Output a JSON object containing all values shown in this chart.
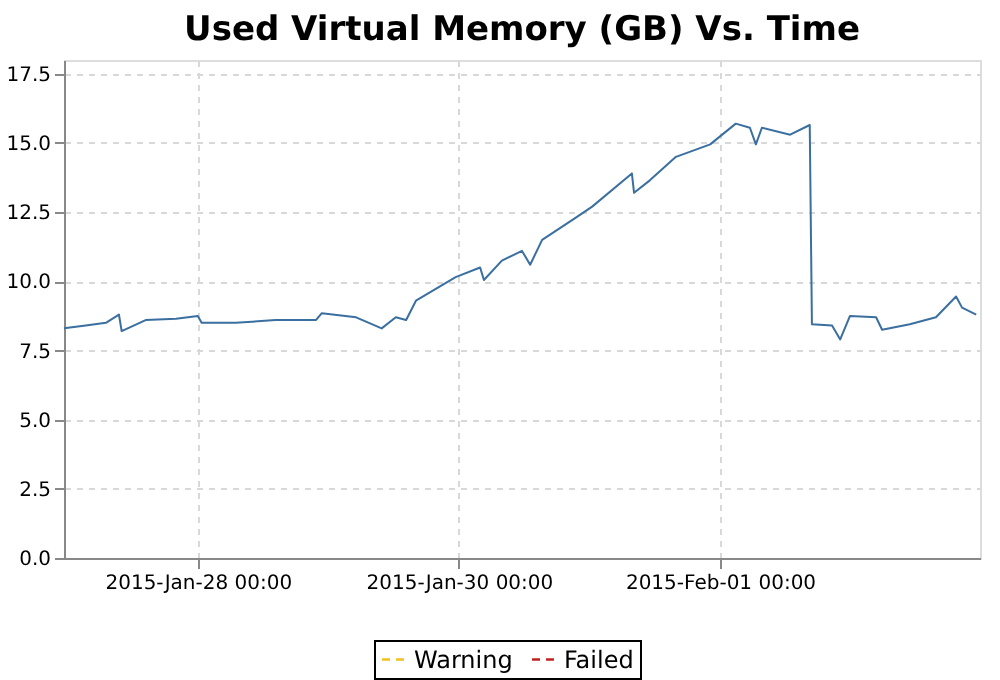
{
  "chart_data": {
    "type": "line",
    "title": "Used Virtual Memory (GB) Vs. Time",
    "x": [
      "2015-01-26T23:24",
      "2015-01-27T03:24",
      "2015-01-27T07:06",
      "2015-01-27T09:30",
      "2015-01-27T10:00",
      "2015-01-27T14:24",
      "2015-01-27T20:00",
      "2015-01-28T00:00",
      "2015-01-28T00:42",
      "2015-01-28T07:00",
      "2015-01-28T14:18",
      "2015-01-28T21:42",
      "2015-01-28T22:48",
      "2015-01-29T05:06",
      "2015-01-29T09:48",
      "2015-01-29T12:24",
      "2015-01-29T14:18",
      "2015-01-29T16:06",
      "2015-01-29T23:24",
      "2015-01-30T03:54",
      "2015-01-30T04:36",
      "2015-01-30T07:54",
      "2015-01-30T11:36",
      "2015-01-30T13:06",
      "2015-01-30T15:18",
      "2015-01-30T21:30",
      "2015-01-31T00:30",
      "2015-01-31T07:48",
      "2015-01-31T08:12",
      "2015-01-31T11:06",
      "2015-01-31T15:54",
      "2015-01-31T22:12",
      "2015-02-01T02:54",
      "2015-02-01T05:30",
      "2015-02-01T06:36",
      "2015-02-01T07:42",
      "2015-02-01T12:54",
      "2015-02-01T16:30",
      "2015-02-01T16:54",
      "2015-02-01T20:36",
      "2015-02-01T22:06",
      "2015-02-01T23:54",
      "2015-02-02T04:42",
      "2015-02-02T05:48",
      "2015-02-02T10:54",
      "2015-02-02T15:42",
      "2015-02-02T19:24",
      "2015-02-02T20:30",
      "2015-02-02T23:06"
    ],
    "series": [
      {
        "color": "#3a6fa0",
        "values": [
          8.3,
          8.4,
          8.5,
          8.8,
          8.2,
          8.6,
          8.65,
          8.75,
          8.5,
          8.5,
          8.6,
          8.6,
          8.85,
          8.7,
          8.3,
          8.7,
          8.6,
          9.3,
          10.15,
          10.5,
          10.05,
          10.75,
          11.1,
          10.6,
          11.5,
          12.3,
          12.7,
          13.9,
          13.2,
          13.65,
          14.5,
          14.95,
          15.7,
          15.55,
          14.95,
          15.55,
          15.3,
          15.65,
          8.45,
          8.4,
          7.9,
          8.75,
          8.7,
          8.25,
          8.45,
          8.7,
          9.45,
          9.05,
          8.8
        ]
      },
      {
        "name": "Warning",
        "color": "#f0c020",
        "line_style": "dashed",
        "values": [
          null,
          null,
          null,
          null,
          null,
          null,
          null,
          null,
          null,
          null,
          null,
          null,
          null,
          null,
          null,
          null,
          null,
          null,
          null,
          null,
          null,
          null,
          null,
          null,
          null,
          null,
          null,
          null,
          null,
          null,
          null,
          null,
          null,
          null,
          null,
          null,
          null,
          null,
          null,
          null,
          null,
          null,
          null,
          null,
          null,
          null,
          null,
          null,
          null
        ]
      },
      {
        "name": "Failed",
        "color": "#c02020",
        "line_style": "dashed",
        "values": [
          null,
          null,
          null,
          null,
          null,
          null,
          null,
          null,
          null,
          null,
          null,
          null,
          null,
          null,
          null,
          null,
          null,
          null,
          null,
          null,
          null,
          null,
          null,
          null,
          null,
          null,
          null,
          null,
          null,
          null,
          null,
          null,
          null,
          null,
          null,
          null,
          null,
          null,
          null,
          null,
          null,
          null,
          null,
          null,
          null,
          null,
          null,
          null,
          null
        ]
      }
    ],
    "xlim": [
      "2015-01-26T23:24",
      "2015-02-02T23:48"
    ],
    "xticks": [
      {
        "value": "2015-01-28T00:00",
        "label": "2015-Jan-28 00:00"
      },
      {
        "value": "2015-01-30T00:00",
        "label": "2015-Jan-30 00:00"
      },
      {
        "value": "2015-02-01T00:00",
        "label": "2015-Feb-01 00:00"
      }
    ],
    "ylim": [
      0,
      18
    ],
    "yticks": [
      {
        "value": 0,
        "label": "0.0"
      },
      {
        "value": 2.5,
        "label": "2.5"
      },
      {
        "value": 5,
        "label": "5.0"
      },
      {
        "value": 7.5,
        "label": "7.5"
      },
      {
        "value": 10,
        "label": "10.0"
      },
      {
        "value": 12.5,
        "label": "12.5"
      },
      {
        "value": 15,
        "label": "15.0"
      },
      {
        "value": 17.5,
        "label": "17.5"
      }
    ],
    "grid": true,
    "legend": "bottom",
    "line_style": "solid",
    "marker": "none"
  }
}
